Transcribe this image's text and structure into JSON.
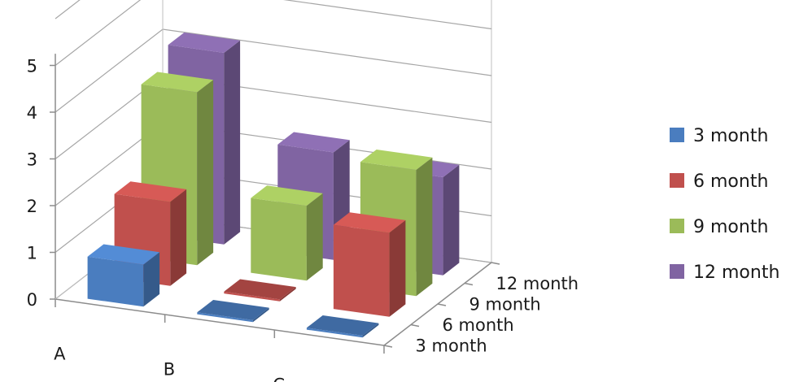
{
  "chart_data": {
    "type": "bar",
    "subtype": "3d-clustered",
    "categories": [
      "A",
      "B",
      "C"
    ],
    "depth_categories": [
      "3 month",
      "6 month",
      "9 month",
      "12 month"
    ],
    "series": [
      {
        "name": "3 month",
        "values": [
          0.9,
          0.0,
          0.0
        ],
        "color": "#4a7dbf"
      },
      {
        "name": "6 month",
        "values": [
          1.8,
          0.0,
          1.8
        ],
        "color": "#c0504d"
      },
      {
        "name": "9 month",
        "values": [
          3.7,
          1.6,
          2.7
        ],
        "color": "#9bbb59"
      },
      {
        "name": "12 month",
        "values": [
          4.1,
          2.3,
          2.1
        ],
        "color": "#8064a2"
      }
    ],
    "yticks": [
      "0",
      "1",
      "2",
      "3",
      "4",
      "5"
    ],
    "ylim": [
      0,
      5
    ],
    "grid": true,
    "legend_position": "right",
    "title": "",
    "xlabel": "",
    "ylabel": ""
  }
}
